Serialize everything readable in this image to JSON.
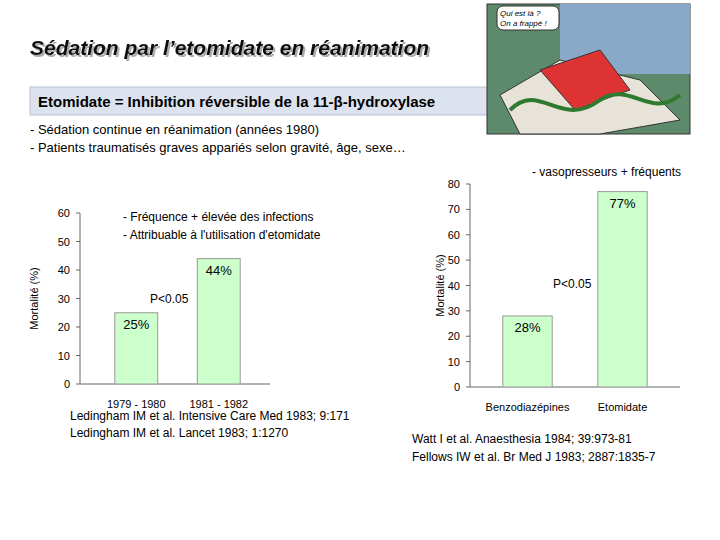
{
  "slide": {
    "title": "Sédation par l’etomidate en réanimation",
    "banner": "Etomidate = Inhibition réversible de la 11-β-hydroxylase",
    "bullets": [
      "- Sédation continue en réanimation (années 1980)",
      "- Patients traumatisés graves appariés selon gravité, âge, sexe…"
    ],
    "image_text": [
      "Qui est là ?",
      "On a frappé !"
    ]
  },
  "chart_data": [
    {
      "type": "bar",
      "categories": [
        "1979 - 1980",
        "1981 - 1982"
      ],
      "values": [
        25,
        44
      ],
      "value_labels": [
        "25%",
        "44%"
      ],
      "data_labels": true,
      "color": "#ccffcc",
      "ylabel": "Mortalité (%)",
      "ylim": [
        0,
        60
      ],
      "yticks": [
        0,
        10,
        20,
        30,
        40,
        50,
        60
      ],
      "annotations": [
        "- Fréquence + élevée des infections",
        "- Attribuable à l'utilisation d'etomidate",
        "P<0.05"
      ],
      "references": [
        "Ledingham IM et al. Intensive Care Med 1983; 9:171",
        "Ledingham IM et al. Lancet 1983; 1:1270"
      ]
    },
    {
      "type": "bar",
      "categories": [
        "Benzodiazépines",
        "Etomidate"
      ],
      "values": [
        28,
        77
      ],
      "value_labels": [
        "28%",
        "77%"
      ],
      "data_labels": true,
      "color": "#ccffcc",
      "ylabel": "Mortalité (%)",
      "ylim": [
        0,
        80
      ],
      "yticks": [
        0,
        10,
        20,
        30,
        40,
        50,
        60,
        70,
        80
      ],
      "annotations": [
        "- vasopresseurs + fréquents",
        "P<0.05"
      ],
      "references": [
        "Watt I et al. Anaesthesia 1984; 39:973-81",
        "Fellows IW et al. Br Med J 1983; 2887:1835-7"
      ]
    }
  ]
}
